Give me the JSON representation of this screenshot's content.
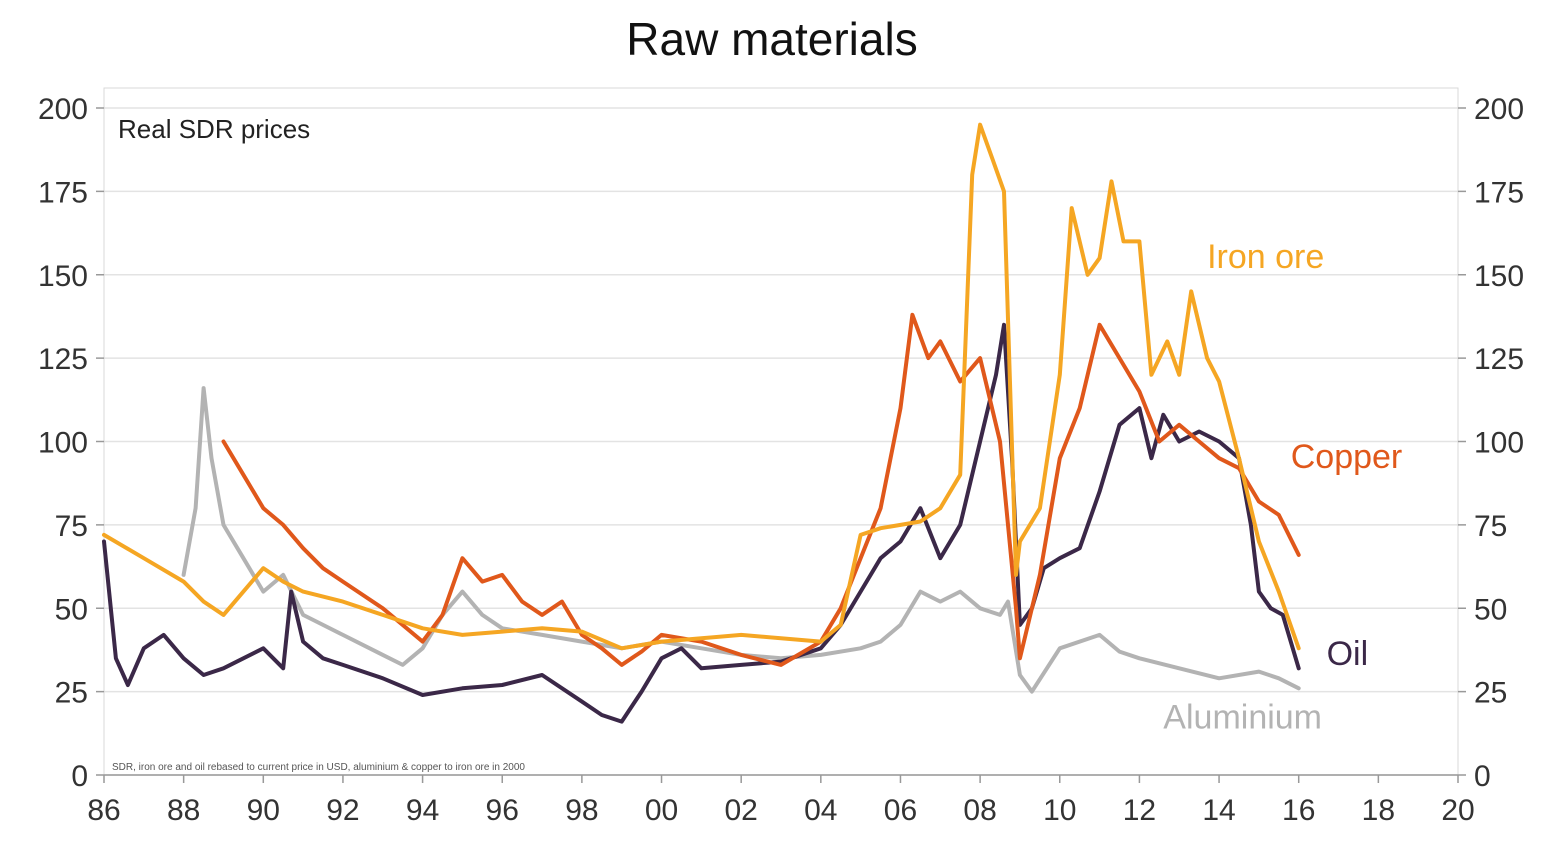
{
  "chart_data": {
    "type": "line",
    "title": "Raw materials",
    "subtitle": "Real SDR prices",
    "footnote": "SDR, iron ore and oil rebased to current price in USD, aluminium & copper to iron ore in 2000",
    "xlabel": "",
    "ylabel": "",
    "xlim": [
      1986,
      2020
    ],
    "ylim": [
      0,
      200
    ],
    "x_ticks": [
      1986,
      1988,
      1990,
      1992,
      1994,
      1996,
      1998,
      2000,
      2002,
      2004,
      2006,
      2008,
      2010,
      2012,
      2014,
      2016,
      2018,
      2020
    ],
    "x_tick_labels": [
      "86",
      "88",
      "90",
      "92",
      "94",
      "96",
      "98",
      "00",
      "02",
      "04",
      "06",
      "08",
      "10",
      "12",
      "14",
      "16",
      "18",
      "20"
    ],
    "y_ticks": [
      0,
      25,
      50,
      75,
      100,
      125,
      150,
      175,
      200
    ],
    "y_tick_labels": [
      "0",
      "25",
      "50",
      "75",
      "100",
      "125",
      "150",
      "175",
      "200"
    ],
    "grid": true,
    "series": [
      {
        "name": "Aluminium",
        "color": "#b3b3b3",
        "points": [
          [
            1988.0,
            60
          ],
          [
            1988.3,
            80
          ],
          [
            1988.5,
            116
          ],
          [
            1988.7,
            95
          ],
          [
            1989.0,
            75
          ],
          [
            1989.5,
            65
          ],
          [
            1990.0,
            55
          ],
          [
            1990.5,
            60
          ],
          [
            1991.0,
            48
          ],
          [
            1991.5,
            45
          ],
          [
            1992.0,
            42
          ],
          [
            1993.0,
            36
          ],
          [
            1993.5,
            33
          ],
          [
            1994.0,
            38
          ],
          [
            1994.5,
            48
          ],
          [
            1995.0,
            55
          ],
          [
            1995.5,
            48
          ],
          [
            1996.0,
            44
          ],
          [
            1997.0,
            42
          ],
          [
            1998.0,
            40
          ],
          [
            1999.0,
            38
          ],
          [
            2000.0,
            40
          ],
          [
            2001.0,
            38
          ],
          [
            2002.0,
            36
          ],
          [
            2003.0,
            35
          ],
          [
            2004.0,
            36
          ],
          [
            2005.0,
            38
          ],
          [
            2005.5,
            40
          ],
          [
            2006.0,
            45
          ],
          [
            2006.5,
            55
          ],
          [
            2007.0,
            52
          ],
          [
            2007.5,
            55
          ],
          [
            2008.0,
            50
          ],
          [
            2008.5,
            48
          ],
          [
            2008.7,
            52
          ],
          [
            2009.0,
            30
          ],
          [
            2009.3,
            25
          ],
          [
            2010.0,
            38
          ],
          [
            2011.0,
            42
          ],
          [
            2011.5,
            37
          ],
          [
            2012.0,
            35
          ],
          [
            2013.0,
            32
          ],
          [
            2014.0,
            29
          ],
          [
            2015.0,
            31
          ],
          [
            2015.5,
            29
          ],
          [
            2016.0,
            26
          ]
        ]
      },
      {
        "name": "Oil",
        "color": "#3b2848",
        "points": [
          [
            1986.0,
            70
          ],
          [
            1986.3,
            35
          ],
          [
            1986.6,
            27
          ],
          [
            1987.0,
            38
          ],
          [
            1987.5,
            42
          ],
          [
            1988.0,
            35
          ],
          [
            1988.5,
            30
          ],
          [
            1989.0,
            32
          ],
          [
            1989.5,
            35
          ],
          [
            1990.0,
            38
          ],
          [
            1990.5,
            32
          ],
          [
            1990.7,
            55
          ],
          [
            1991.0,
            40
          ],
          [
            1991.5,
            35
          ],
          [
            1992.0,
            33
          ],
          [
            1993.0,
            29
          ],
          [
            1994.0,
            24
          ],
          [
            1995.0,
            26
          ],
          [
            1996.0,
            27
          ],
          [
            1997.0,
            30
          ],
          [
            1998.0,
            22
          ],
          [
            1998.5,
            18
          ],
          [
            1999.0,
            16
          ],
          [
            1999.5,
            25
          ],
          [
            2000.0,
            35
          ],
          [
            2000.5,
            38
          ],
          [
            2001.0,
            32
          ],
          [
            2002.0,
            33
          ],
          [
            2003.0,
            34
          ],
          [
            2004.0,
            38
          ],
          [
            2004.5,
            45
          ],
          [
            2005.0,
            55
          ],
          [
            2005.5,
            65
          ],
          [
            2006.0,
            70
          ],
          [
            2006.5,
            80
          ],
          [
            2007.0,
            65
          ],
          [
            2007.5,
            75
          ],
          [
            2008.0,
            100
          ],
          [
            2008.4,
            120
          ],
          [
            2008.6,
            135
          ],
          [
            2008.8,
            95
          ],
          [
            2009.0,
            45
          ],
          [
            2009.3,
            50
          ],
          [
            2009.6,
            62
          ],
          [
            2010.0,
            65
          ],
          [
            2010.5,
            68
          ],
          [
            2011.0,
            85
          ],
          [
            2011.5,
            105
          ],
          [
            2012.0,
            110
          ],
          [
            2012.3,
            95
          ],
          [
            2012.6,
            108
          ],
          [
            2013.0,
            100
          ],
          [
            2013.5,
            103
          ],
          [
            2014.0,
            100
          ],
          [
            2014.5,
            95
          ],
          [
            2014.8,
            75
          ],
          [
            2015.0,
            55
          ],
          [
            2015.3,
            50
          ],
          [
            2015.6,
            48
          ],
          [
            2016.0,
            32
          ]
        ]
      },
      {
        "name": "Copper",
        "color": "#e0581b",
        "points": [
          [
            1989.0,
            100
          ],
          [
            1989.5,
            90
          ],
          [
            1990.0,
            80
          ],
          [
            1990.5,
            75
          ],
          [
            1991.0,
            68
          ],
          [
            1991.5,
            62
          ],
          [
            1992.0,
            58
          ],
          [
            1993.0,
            50
          ],
          [
            1994.0,
            40
          ],
          [
            1994.5,
            48
          ],
          [
            1995.0,
            65
          ],
          [
            1995.5,
            58
          ],
          [
            1996.0,
            60
          ],
          [
            1996.5,
            52
          ],
          [
            1997.0,
            48
          ],
          [
            1997.5,
            52
          ],
          [
            1998.0,
            42
          ],
          [
            1998.5,
            38
          ],
          [
            1999.0,
            33
          ],
          [
            1999.5,
            37
          ],
          [
            2000.0,
            42
          ],
          [
            2001.0,
            40
          ],
          [
            2002.0,
            36
          ],
          [
            2003.0,
            33
          ],
          [
            2004.0,
            40
          ],
          [
            2004.5,
            50
          ],
          [
            2005.0,
            65
          ],
          [
            2005.5,
            80
          ],
          [
            2006.0,
            110
          ],
          [
            2006.3,
            138
          ],
          [
            2006.7,
            125
          ],
          [
            2007.0,
            130
          ],
          [
            2007.5,
            118
          ],
          [
            2008.0,
            125
          ],
          [
            2008.5,
            100
          ],
          [
            2008.9,
            50
          ],
          [
            2009.0,
            35
          ],
          [
            2009.5,
            60
          ],
          [
            2010.0,
            95
          ],
          [
            2010.5,
            110
          ],
          [
            2011.0,
            135
          ],
          [
            2011.5,
            125
          ],
          [
            2012.0,
            115
          ],
          [
            2012.5,
            100
          ],
          [
            2013.0,
            105
          ],
          [
            2013.5,
            100
          ],
          [
            2014.0,
            95
          ],
          [
            2014.5,
            92
          ],
          [
            2015.0,
            82
          ],
          [
            2015.5,
            78
          ],
          [
            2016.0,
            66
          ]
        ]
      },
      {
        "name": "Iron ore",
        "color": "#f5a623",
        "points": [
          [
            1986.0,
            72
          ],
          [
            1987.0,
            65
          ],
          [
            1988.0,
            58
          ],
          [
            1988.5,
            52
          ],
          [
            1989.0,
            48
          ],
          [
            1989.5,
            55
          ],
          [
            1990.0,
            62
          ],
          [
            1990.5,
            58
          ],
          [
            1991.0,
            55
          ],
          [
            1992.0,
            52
          ],
          [
            1993.0,
            48
          ],
          [
            1994.0,
            44
          ],
          [
            1995.0,
            42
          ],
          [
            1996.0,
            43
          ],
          [
            1997.0,
            44
          ],
          [
            1998.0,
            43
          ],
          [
            1999.0,
            38
          ],
          [
            2000.0,
            40
          ],
          [
            2001.0,
            41
          ],
          [
            2002.0,
            42
          ],
          [
            2003.0,
            41
          ],
          [
            2004.0,
            40
          ],
          [
            2004.5,
            45
          ],
          [
            2005.0,
            72
          ],
          [
            2005.5,
            74
          ],
          [
            2006.0,
            75
          ],
          [
            2006.5,
            76
          ],
          [
            2007.0,
            80
          ],
          [
            2007.5,
            90
          ],
          [
            2007.8,
            180
          ],
          [
            2008.0,
            195
          ],
          [
            2008.3,
            185
          ],
          [
            2008.6,
            175
          ],
          [
            2008.9,
            60
          ],
          [
            2009.0,
            70
          ],
          [
            2009.5,
            80
          ],
          [
            2010.0,
            120
          ],
          [
            2010.3,
            170
          ],
          [
            2010.7,
            150
          ],
          [
            2011.0,
            155
          ],
          [
            2011.3,
            178
          ],
          [
            2011.6,
            160
          ],
          [
            2012.0,
            160
          ],
          [
            2012.3,
            120
          ],
          [
            2012.7,
            130
          ],
          [
            2013.0,
            120
          ],
          [
            2013.3,
            145
          ],
          [
            2013.7,
            125
          ],
          [
            2014.0,
            118
          ],
          [
            2014.5,
            95
          ],
          [
            2015.0,
            70
          ],
          [
            2015.5,
            55
          ],
          [
            2016.0,
            38
          ]
        ]
      }
    ],
    "series_labels": [
      {
        "series": "Iron ore",
        "x": 2013.7,
        "y": 152
      },
      {
        "series": "Copper",
        "x": 2015.8,
        "y": 92
      },
      {
        "series": "Oil",
        "x": 2016.7,
        "y": 33
      },
      {
        "series": "Aluminium",
        "x": 2012.6,
        "y": 14
      }
    ],
    "legend": "inline labels"
  }
}
